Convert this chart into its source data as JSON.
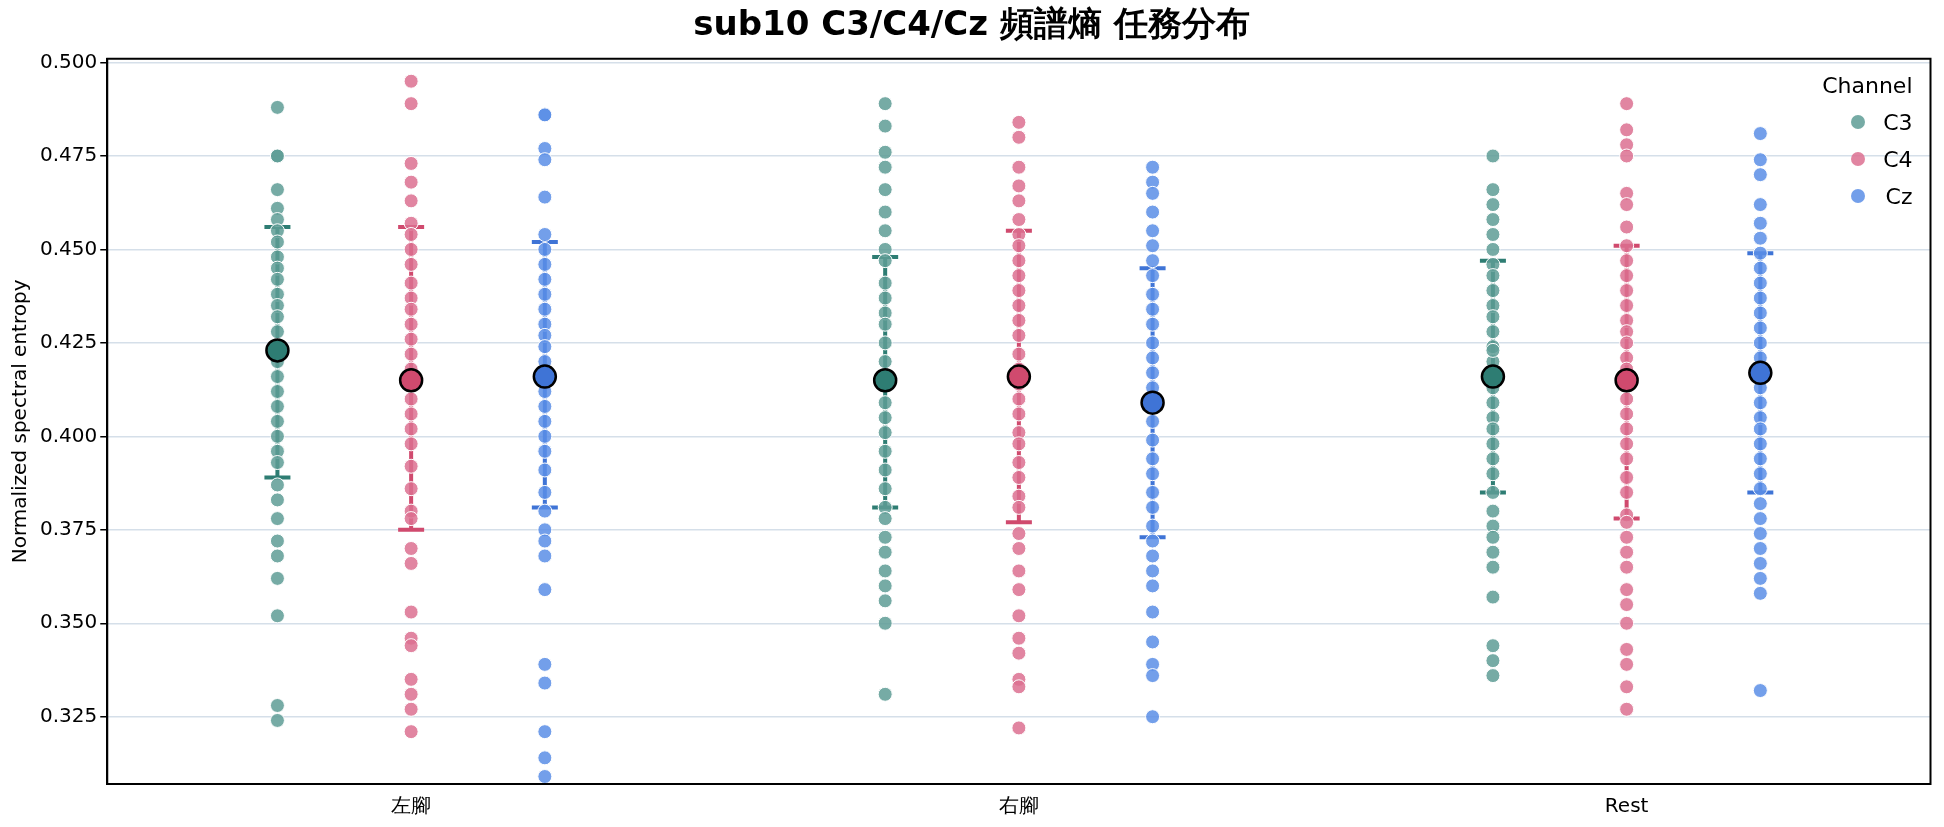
{
  "chart_data": {
    "type": "scatter",
    "title": "sub10 C3/C4/Cz 頻譜熵 任務分布",
    "ylabel": "Normalized spectral entropy",
    "legend_title": "Channel",
    "legend": "top right",
    "grid": "y",
    "marker": "circle",
    "categories": [
      "左腳",
      "右腳",
      "Rest"
    ],
    "ylim": [
      0.307,
      0.501
    ],
    "yticks": [
      {
        "value": 0.325,
        "label": "0.325"
      },
      {
        "value": 0.35,
        "label": "0.350"
      },
      {
        "value": 0.375,
        "label": "0.375"
      },
      {
        "value": 0.4,
        "label": "0.400"
      },
      {
        "value": 0.425,
        "label": "0.425"
      },
      {
        "value": 0.45,
        "label": "0.450"
      },
      {
        "value": 0.475,
        "label": "0.475"
      },
      {
        "value": 0.5,
        "label": "0.500"
      }
    ],
    "series": [
      {
        "name": "C3",
        "color": "#5e9c95",
        "x": [
          "左腳",
          "左腳",
          "左腳",
          "左腳",
          "左腳",
          "左腳",
          "左腳",
          "左腳",
          "左腳",
          "左腳",
          "左腳",
          "左腳",
          "左腳",
          "左腳",
          "左腳",
          "左腳",
          "左腳",
          "左腳",
          "左腳",
          "左腳",
          "左腳",
          "左腳",
          "左腳",
          "左腳",
          "左腳",
          "左腳",
          "左腳",
          "左腳",
          "左腳",
          "左腳",
          "左腳",
          "左腳",
          "右腳",
          "右腳",
          "右腳",
          "右腳",
          "右腳",
          "右腳",
          "右腳",
          "右腳",
          "右腳",
          "右腳",
          "右腳",
          "右腳",
          "右腳",
          "右腳",
          "右腳",
          "右腳",
          "右腳",
          "右腳",
          "右腳",
          "右腳",
          "右腳",
          "右腳",
          "右腳",
          "右腳",
          "右腳",
          "右腳",
          "右腳",
          "右腳",
          "右腳",
          "右腳",
          "右腳",
          "右腳",
          "Rest",
          "Rest",
          "Rest",
          "Rest",
          "Rest",
          "Rest",
          "Rest",
          "Rest",
          "Rest",
          "Rest",
          "Rest",
          "Rest",
          "Rest",
          "Rest",
          "Rest",
          "Rest",
          "Rest",
          "Rest",
          "Rest",
          "Rest",
          "Rest",
          "Rest",
          "Rest",
          "Rest",
          "Rest",
          "Rest",
          "Rest",
          "Rest",
          "Rest",
          "Rest",
          "Rest",
          "Rest"
        ],
        "values": [
          0.488,
          0.475,
          0.475,
          0.466,
          0.461,
          0.458,
          0.455,
          0.452,
          0.448,
          0.445,
          0.442,
          0.438,
          0.435,
          0.432,
          0.428,
          0.42,
          0.416,
          0.412,
          0.408,
          0.404,
          0.4,
          0.396,
          0.393,
          0.387,
          0.383,
          0.378,
          0.372,
          0.368,
          0.362,
          0.352,
          0.328,
          0.324,
          0.489,
          0.483,
          0.476,
          0.472,
          0.466,
          0.46,
          0.455,
          0.45,
          0.447,
          0.441,
          0.437,
          0.433,
          0.43,
          0.425,
          0.42,
          null,
          null,
          0.409,
          0.405,
          0.401,
          0.396,
          0.391,
          0.386,
          0.381,
          0.378,
          0.373,
          0.369,
          0.364,
          0.36,
          0.356,
          0.35,
          0.331,
          0.475,
          0.466,
          0.462,
          0.458,
          0.454,
          0.45,
          0.446,
          0.443,
          0.439,
          0.435,
          0.432,
          0.428,
          0.424,
          0.42,
          0.413,
          0.409,
          0.405,
          0.402,
          0.398,
          0.394,
          0.39,
          0.385,
          0.38,
          0.376,
          0.373,
          0.369,
          0.365,
          0.357,
          0.344,
          0.34,
          0.336,
          0.423
        ]
      },
      {
        "name": "C4",
        "color": "#dc7090",
        "x": [
          "左腳",
          "左腳",
          "左腳",
          "左腳",
          "左腳",
          "左腳",
          "左腳",
          "左腳",
          "左腳",
          "左腳",
          "左腳",
          "左腳",
          "左腳",
          "左腳",
          "左腳",
          "左腳",
          "左腳",
          "左腳",
          "左腳",
          "左腳",
          "左腳",
          "左腳",
          "左腳",
          "左腳",
          "左腳",
          "左腳",
          "左腳",
          "左腳",
          "左腳",
          "左腳",
          "左腳",
          "左腳",
          "左腳",
          "右腳",
          "右腳",
          "右腳",
          "右腳",
          "右腳",
          "右腳",
          "右腳",
          "右腳",
          "右腳",
          "右腳",
          "右腳",
          "右腳",
          "右腳",
          "右腳",
          "右腳",
          "右腳",
          "右腳",
          "右腳",
          "右腳",
          "右腳",
          "右腳",
          "右腳",
          "右腳",
          "右腳",
          "右腳",
          "右腳",
          "右腳",
          "右腳",
          "右腳",
          "右腳",
          "右腳",
          "右腳",
          "右腳",
          "右腳",
          "右腳",
          "Rest",
          "Rest",
          "Rest",
          "Rest",
          "Rest",
          "Rest",
          "Rest",
          "Rest",
          "Rest",
          "Rest",
          "Rest",
          "Rest",
          "Rest",
          "Rest",
          "Rest",
          "Rest",
          "Rest",
          "Rest",
          "Rest",
          "Rest",
          "Rest",
          "Rest",
          "Rest",
          "Rest",
          "Rest",
          "Rest",
          "Rest",
          "Rest",
          "Rest",
          "Rest",
          "Rest",
          "Rest",
          "Rest",
          "Rest",
          "Rest",
          "Rest"
        ],
        "values": [
          0.495,
          0.489,
          0.473,
          0.468,
          0.463,
          0.457,
          0.454,
          0.45,
          0.446,
          0.441,
          0.437,
          0.434,
          0.43,
          0.426,
          0.422,
          0.418,
          0.41,
          0.406,
          0.402,
          0.398,
          0.392,
          0.386,
          0.38,
          0.378,
          0.37,
          0.366,
          0.353,
          0.346,
          0.344,
          0.335,
          0.331,
          0.327,
          0.321,
          0.484,
          0.48,
          0.472,
          0.467,
          0.463,
          0.458,
          0.454,
          0.451,
          0.447,
          0.443,
          0.439,
          0.435,
          0.431,
          0.427,
          0.422,
          0.418,
          0.414,
          0.41,
          0.406,
          0.401,
          0.398,
          0.393,
          0.389,
          0.384,
          0.381,
          0.374,
          0.37,
          0.364,
          0.359,
          0.352,
          0.346,
          0.342,
          0.335,
          0.333,
          0.322,
          0.489,
          0.482,
          0.478,
          0.475,
          0.465,
          0.462,
          0.456,
          0.451,
          0.447,
          0.443,
          0.439,
          0.435,
          0.431,
          0.428,
          0.425,
          0.421,
          0.418,
          0.41,
          0.406,
          0.402,
          0.398,
          0.394,
          0.389,
          0.385,
          0.379,
          0.377,
          0.373,
          0.369,
          0.365,
          0.359,
          0.355,
          0.35,
          0.343,
          0.339,
          0.333,
          0.327
        ]
      },
      {
        "name": "Cz",
        "color": "#5b8ee6",
        "x": [
          "左腳",
          "左腳",
          "左腳",
          "左腳",
          "左腳",
          "左腳",
          "左腳",
          "左腳",
          "左腳",
          "左腳",
          "左腳",
          "左腳",
          "左腳",
          "左腳",
          "左腳",
          "左腳",
          "左腳",
          "左腳",
          "左腳",
          "左腳",
          "左腳",
          "左腳",
          "左腳",
          "左腳",
          "左腳",
          "左腳",
          "左腳",
          "左腳",
          "左腳",
          "左腳",
          "左腳",
          "左腳",
          "右腳",
          "右腳",
          "右腳",
          "右腳",
          "右腳",
          "右腳",
          "右腳",
          "右腳",
          "右腳",
          "右腳",
          "右腳",
          "右腳",
          "右腳",
          "右腳",
          "右腳",
          "右腳",
          "右腳",
          "右腳",
          "右腳",
          "右腳",
          "右腳",
          "右腳",
          "右腳",
          "右腳",
          "右腳",
          "右腳",
          "右腳",
          "右腳",
          "右腳",
          "右腳",
          "右腳",
          "Rest",
          "Rest",
          "Rest",
          "Rest",
          "Rest",
          "Rest",
          "Rest",
          "Rest",
          "Rest",
          "Rest",
          "Rest",
          "Rest",
          "Rest",
          "Rest",
          "Rest",
          "Rest",
          "Rest",
          "Rest",
          "Rest",
          "Rest",
          "Rest",
          "Rest",
          "Rest",
          "Rest",
          "Rest",
          "Rest",
          "Rest",
          "Rest",
          "Rest",
          "Rest"
        ],
        "values": [
          0.486,
          0.486,
          0.477,
          0.474,
          0.464,
          0.454,
          0.45,
          0.446,
          0.442,
          0.438,
          0.434,
          0.43,
          0.427,
          0.424,
          0.42,
          0.412,
          0.408,
          0.404,
          0.4,
          0.396,
          0.391,
          0.385,
          0.38,
          0.375,
          0.372,
          0.368,
          0.359,
          0.339,
          0.334,
          0.321,
          0.314,
          0.309,
          0.472,
          0.468,
          0.465,
          0.46,
          0.455,
          0.451,
          0.447,
          0.443,
          0.438,
          0.434,
          0.43,
          0.425,
          0.421,
          0.417,
          0.413,
          0.404,
          0.399,
          0.394,
          0.39,
          0.385,
          0.381,
          0.376,
          0.372,
          0.368,
          0.364,
          0.36,
          0.353,
          0.345,
          0.339,
          0.336,
          0.325,
          0.481,
          0.474,
          0.47,
          0.462,
          0.457,
          0.453,
          0.449,
          0.445,
          0.441,
          0.437,
          0.433,
          0.429,
          0.425,
          0.421,
          0.413,
          0.409,
          0.405,
          0.402,
          0.398,
          0.394,
          0.39,
          0.386,
          0.382,
          0.378,
          0.374,
          0.37,
          0.366,
          0.362,
          0.358,
          0.332
        ]
      },
      {
        "color": "#2e7d73",
        "x": [
          "左腳",
          "右腳",
          "Rest"
        ],
        "values": [
          0.423,
          0.415,
          0.416
        ],
        "errors": [
          [
            0.389,
            0.456
          ],
          [
            0.381,
            0.448
          ],
          [
            0.385,
            0.447
          ]
        ]
      },
      {
        "color": "#d04a6e",
        "x": [
          "左腳",
          "右腳",
          "Rest"
        ],
        "values": [
          0.415,
          0.416,
          0.415
        ],
        "errors": [
          [
            0.375,
            0.456
          ],
          [
            0.377,
            0.455
          ],
          [
            0.378,
            0.451
          ]
        ]
      },
      {
        "color": "#3f74d6",
        "x": [
          "左腳",
          "右腳",
          "Rest"
        ],
        "values": [
          0.416,
          0.409,
          0.417
        ],
        "errors": [
          [
            0.381,
            0.452
          ],
          [
            0.373,
            0.445
          ],
          [
            0.385,
            0.449
          ]
        ]
      }
    ]
  }
}
